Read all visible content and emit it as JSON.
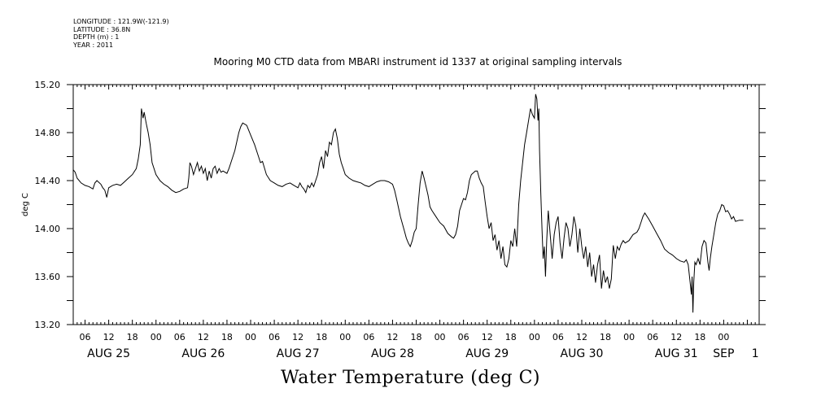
{
  "meta": {
    "longitude": "LONGITUDE : 121.9W(-121.9)",
    "latitude": "LATITUDE : 36.8N",
    "depth": "DEPTH (m) : 1",
    "year": "YEAR : 2011"
  },
  "chart_data": {
    "type": "line",
    "title": "Mooring M0 CTD data from MBARI instrument id 1337 at original sampling intervals",
    "bottom_title": "Water Temperature (deg C)",
    "ylabel": "deg C",
    "xlabel": "",
    "grid": false,
    "ylim": [
      13.2,
      15.2
    ],
    "y_ticks": [
      "13.20",
      "13.60",
      "14.00",
      "14.40",
      "14.80",
      "15.20"
    ],
    "x_unit": "hours since Aug 25 00:00, 2011",
    "xlim": [
      3,
      177
    ],
    "hour_ticks": [
      {
        "h": 6,
        "label": "06"
      },
      {
        "h": 12,
        "label": "12"
      },
      {
        "h": 18,
        "label": "18"
      },
      {
        "h": 24,
        "label": "00"
      },
      {
        "h": 30,
        "label": "06"
      },
      {
        "h": 36,
        "label": "12"
      },
      {
        "h": 42,
        "label": "18"
      },
      {
        "h": 48,
        "label": "00"
      },
      {
        "h": 54,
        "label": "06"
      },
      {
        "h": 60,
        "label": "12"
      },
      {
        "h": 66,
        "label": "18"
      },
      {
        "h": 72,
        "label": "00"
      },
      {
        "h": 78,
        "label": "06"
      },
      {
        "h": 84,
        "label": "12"
      },
      {
        "h": 90,
        "label": "18"
      },
      {
        "h": 96,
        "label": "00"
      },
      {
        "h": 102,
        "label": "06"
      },
      {
        "h": 108,
        "label": "12"
      },
      {
        "h": 114,
        "label": "18"
      },
      {
        "h": 120,
        "label": "00"
      },
      {
        "h": 126,
        "label": "06"
      },
      {
        "h": 132,
        "label": "12"
      },
      {
        "h": 138,
        "label": "18"
      },
      {
        "h": 144,
        "label": "00"
      },
      {
        "h": 150,
        "label": "06"
      },
      {
        "h": 156,
        "label": "12"
      },
      {
        "h": 162,
        "label": "18"
      },
      {
        "h": 168,
        "label": "00"
      }
    ],
    "day_labels": [
      {
        "h": 12,
        "label": "AUG 25"
      },
      {
        "h": 36,
        "label": "AUG 26"
      },
      {
        "h": 60,
        "label": "AUG 27"
      },
      {
        "h": 84,
        "label": "AUG 28"
      },
      {
        "h": 108,
        "label": "AUG 29"
      },
      {
        "h": 132,
        "label": "AUG 30"
      },
      {
        "h": 156,
        "label": "AUG 31"
      },
      {
        "h": 168,
        "label": "SEP"
      },
      {
        "h": 176,
        "label": "1"
      }
    ],
    "series": [
      {
        "points": [
          [
            3.0,
            14.49
          ],
          [
            3.5,
            14.47
          ],
          [
            4.0,
            14.42
          ],
          [
            5.0,
            14.38
          ],
          [
            6.0,
            14.36
          ],
          [
            7.0,
            14.35
          ],
          [
            8.0,
            14.33
          ],
          [
            8.5,
            14.38
          ],
          [
            9.0,
            14.4
          ],
          [
            10.0,
            14.37
          ],
          [
            10.5,
            14.34
          ],
          [
            11.0,
            14.32
          ],
          [
            11.5,
            14.26
          ],
          [
            12.0,
            14.34
          ],
          [
            13.0,
            14.36
          ],
          [
            14.0,
            14.37
          ],
          [
            15.0,
            14.36
          ],
          [
            16.0,
            14.39
          ],
          [
            17.0,
            14.42
          ],
          [
            18.0,
            14.45
          ],
          [
            19.0,
            14.5
          ],
          [
            19.5,
            14.58
          ],
          [
            20.0,
            14.7
          ],
          [
            20.3,
            15.0
          ],
          [
            20.7,
            14.92
          ],
          [
            21.0,
            14.97
          ],
          [
            21.5,
            14.88
          ],
          [
            22.0,
            14.8
          ],
          [
            22.5,
            14.7
          ],
          [
            23.0,
            14.55
          ],
          [
            24.0,
            14.45
          ],
          [
            25.0,
            14.4
          ],
          [
            26.0,
            14.37
          ],
          [
            27.0,
            14.35
          ],
          [
            28.0,
            14.32
          ],
          [
            29.0,
            14.3
          ],
          [
            30.0,
            14.31
          ],
          [
            31.0,
            14.33
          ],
          [
            32.0,
            14.34
          ],
          [
            32.3,
            14.42
          ],
          [
            32.6,
            14.55
          ],
          [
            33.0,
            14.52
          ],
          [
            33.5,
            14.45
          ],
          [
            34.0,
            14.5
          ],
          [
            34.5,
            14.55
          ],
          [
            35.0,
            14.48
          ],
          [
            35.5,
            14.52
          ],
          [
            36.0,
            14.46
          ],
          [
            36.5,
            14.5
          ],
          [
            37.0,
            14.4
          ],
          [
            37.5,
            14.48
          ],
          [
            38.0,
            14.42
          ],
          [
            38.5,
            14.5
          ],
          [
            39.0,
            14.52
          ],
          [
            39.5,
            14.46
          ],
          [
            40.0,
            14.5
          ],
          [
            40.5,
            14.47
          ],
          [
            41.0,
            14.48
          ],
          [
            42.0,
            14.46
          ],
          [
            42.5,
            14.5
          ],
          [
            43.0,
            14.55
          ],
          [
            44.0,
            14.65
          ],
          [
            45.0,
            14.8
          ],
          [
            45.5,
            14.85
          ],
          [
            46.0,
            14.88
          ],
          [
            47.0,
            14.86
          ],
          [
            48.0,
            14.78
          ],
          [
            49.0,
            14.7
          ],
          [
            50.0,
            14.6
          ],
          [
            50.5,
            14.55
          ],
          [
            51.0,
            14.56
          ],
          [
            52.0,
            14.45
          ],
          [
            53.0,
            14.4
          ],
          [
            54.0,
            14.38
          ],
          [
            55.0,
            14.36
          ],
          [
            56.0,
            14.35
          ],
          [
            57.0,
            14.37
          ],
          [
            58.0,
            14.38
          ],
          [
            59.0,
            14.36
          ],
          [
            60.0,
            14.34
          ],
          [
            60.5,
            14.38
          ],
          [
            61.0,
            14.35
          ],
          [
            61.5,
            14.33
          ],
          [
            62.0,
            14.3
          ],
          [
            62.5,
            14.36
          ],
          [
            63.0,
            14.34
          ],
          [
            63.5,
            14.38
          ],
          [
            64.0,
            14.35
          ],
          [
            65.0,
            14.45
          ],
          [
            65.5,
            14.55
          ],
          [
            66.0,
            14.6
          ],
          [
            66.5,
            14.5
          ],
          [
            67.0,
            14.65
          ],
          [
            67.5,
            14.6
          ],
          [
            68.0,
            14.72
          ],
          [
            68.5,
            14.7
          ],
          [
            69.0,
            14.8
          ],
          [
            69.5,
            14.83
          ],
          [
            70.0,
            14.75
          ],
          [
            70.5,
            14.62
          ],
          [
            71.0,
            14.55
          ],
          [
            71.5,
            14.5
          ],
          [
            72.0,
            14.45
          ],
          [
            73.0,
            14.42
          ],
          [
            74.0,
            14.4
          ],
          [
            75.0,
            14.39
          ],
          [
            76.0,
            14.38
          ],
          [
            77.0,
            14.36
          ],
          [
            78.0,
            14.35
          ],
          [
            79.0,
            14.37
          ],
          [
            80.0,
            14.39
          ],
          [
            81.0,
            14.4
          ],
          [
            82.0,
            14.4
          ],
          [
            83.0,
            14.39
          ],
          [
            84.0,
            14.37
          ],
          [
            84.5,
            14.32
          ],
          [
            85.0,
            14.25
          ],
          [
            86.0,
            14.1
          ],
          [
            87.0,
            13.98
          ],
          [
            87.5,
            13.92
          ],
          [
            88.0,
            13.88
          ],
          [
            88.5,
            13.85
          ],
          [
            89.0,
            13.9
          ],
          [
            89.5,
            13.97
          ],
          [
            90.0,
            14.0
          ],
          [
            90.5,
            14.2
          ],
          [
            91.0,
            14.38
          ],
          [
            91.5,
            14.48
          ],
          [
            92.0,
            14.42
          ],
          [
            92.5,
            14.35
          ],
          [
            93.0,
            14.28
          ],
          [
            93.5,
            14.18
          ],
          [
            94.0,
            14.15
          ],
          [
            95.0,
            14.1
          ],
          [
            96.0,
            14.05
          ],
          [
            97.0,
            14.02
          ],
          [
            98.0,
            13.96
          ],
          [
            99.0,
            13.93
          ],
          [
            99.5,
            13.92
          ],
          [
            100.0,
            13.95
          ],
          [
            100.5,
            14.02
          ],
          [
            101.0,
            14.15
          ],
          [
            101.5,
            14.2
          ],
          [
            102.0,
            14.25
          ],
          [
            102.5,
            14.24
          ],
          [
            103.0,
            14.3
          ],
          [
            103.5,
            14.4
          ],
          [
            104.0,
            14.45
          ],
          [
            105.0,
            14.48
          ],
          [
            105.5,
            14.48
          ],
          [
            106.0,
            14.42
          ],
          [
            106.5,
            14.38
          ],
          [
            107.0,
            14.35
          ],
          [
            107.5,
            14.22
          ],
          [
            108.0,
            14.1
          ],
          [
            108.5,
            14.0
          ],
          [
            109.0,
            14.05
          ],
          [
            109.5,
            13.9
          ],
          [
            110.0,
            13.95
          ],
          [
            110.5,
            13.82
          ],
          [
            111.0,
            13.9
          ],
          [
            111.5,
            13.75
          ],
          [
            112.0,
            13.85
          ],
          [
            112.5,
            13.7
          ],
          [
            113.0,
            13.68
          ],
          [
            113.5,
            13.75
          ],
          [
            114.0,
            13.9
          ],
          [
            114.5,
            13.85
          ],
          [
            115.0,
            14.0
          ],
          [
            115.5,
            13.85
          ],
          [
            116.0,
            14.2
          ],
          [
            116.5,
            14.4
          ],
          [
            117.0,
            14.55
          ],
          [
            117.5,
            14.7
          ],
          [
            118.0,
            14.8
          ],
          [
            118.5,
            14.9
          ],
          [
            119.0,
            15.0
          ],
          [
            119.5,
            14.95
          ],
          [
            120.0,
            14.92
          ],
          [
            120.3,
            15.12
          ],
          [
            120.6,
            15.08
          ],
          [
            120.9,
            14.9
          ],
          [
            121.1,
            15.0
          ],
          [
            121.3,
            14.65
          ],
          [
            121.6,
            14.3
          ],
          [
            121.9,
            14.0
          ],
          [
            122.2,
            13.75
          ],
          [
            122.5,
            13.85
          ],
          [
            122.8,
            13.6
          ],
          [
            123.1,
            13.9
          ],
          [
            123.5,
            14.15
          ],
          [
            124.0,
            13.95
          ],
          [
            124.5,
            13.75
          ],
          [
            125.0,
            13.95
          ],
          [
            125.5,
            14.05
          ],
          [
            126.0,
            14.1
          ],
          [
            126.5,
            13.88
          ],
          [
            127.0,
            13.75
          ],
          [
            127.5,
            13.92
          ],
          [
            128.0,
            14.05
          ],
          [
            128.5,
            14.0
          ],
          [
            129.0,
            13.85
          ],
          [
            129.5,
            13.95
          ],
          [
            130.0,
            14.1
          ],
          [
            130.5,
            14.02
          ],
          [
            131.0,
            13.8
          ],
          [
            131.5,
            14.0
          ],
          [
            132.0,
            13.85
          ],
          [
            132.5,
            13.75
          ],
          [
            133.0,
            13.85
          ],
          [
            133.5,
            13.68
          ],
          [
            134.0,
            13.8
          ],
          [
            134.5,
            13.6
          ],
          [
            135.0,
            13.7
          ],
          [
            135.5,
            13.55
          ],
          [
            136.0,
            13.7
          ],
          [
            136.5,
            13.78
          ],
          [
            137.0,
            13.5
          ],
          [
            137.5,
            13.65
          ],
          [
            138.0,
            13.55
          ],
          [
            138.5,
            13.6
          ],
          [
            139.0,
            13.5
          ],
          [
            139.5,
            13.58
          ],
          [
            140.0,
            13.86
          ],
          [
            140.5,
            13.75
          ],
          [
            141.0,
            13.85
          ],
          [
            141.5,
            13.82
          ],
          [
            142.0,
            13.87
          ],
          [
            142.5,
            13.9
          ],
          [
            143.0,
            13.88
          ],
          [
            144.0,
            13.9
          ],
          [
            145.0,
            13.95
          ],
          [
            146.0,
            13.97
          ],
          [
            146.5,
            14.0
          ],
          [
            147.0,
            14.05
          ],
          [
            147.5,
            14.1
          ],
          [
            148.0,
            14.13
          ],
          [
            149.0,
            14.08
          ],
          [
            150.0,
            14.02
          ],
          [
            151.0,
            13.96
          ],
          [
            152.0,
            13.9
          ],
          [
            153.0,
            13.83
          ],
          [
            154.0,
            13.8
          ],
          [
            155.0,
            13.78
          ],
          [
            156.0,
            13.75
          ],
          [
            157.0,
            13.73
          ],
          [
            158.0,
            13.72
          ],
          [
            158.5,
            13.74
          ],
          [
            159.0,
            13.7
          ],
          [
            159.5,
            13.55
          ],
          [
            159.8,
            13.45
          ],
          [
            160.0,
            13.6
          ],
          [
            160.2,
            13.3
          ],
          [
            160.4,
            13.55
          ],
          [
            160.7,
            13.72
          ],
          [
            161.0,
            13.7
          ],
          [
            161.5,
            13.75
          ],
          [
            162.0,
            13.7
          ],
          [
            162.5,
            13.85
          ],
          [
            163.0,
            13.9
          ],
          [
            163.5,
            13.88
          ],
          [
            164.0,
            13.72
          ],
          [
            164.3,
            13.65
          ],
          [
            164.6,
            13.75
          ],
          [
            165.0,
            13.85
          ],
          [
            165.5,
            13.95
          ],
          [
            166.0,
            14.05
          ],
          [
            166.5,
            14.12
          ],
          [
            167.0,
            14.15
          ],
          [
            167.5,
            14.2
          ],
          [
            168.0,
            14.19
          ],
          [
            168.5,
            14.14
          ],
          [
            169.0,
            14.15
          ],
          [
            169.5,
            14.12
          ],
          [
            170.0,
            14.08
          ],
          [
            170.5,
            14.1
          ],
          [
            171.0,
            14.06
          ],
          [
            172.0,
            14.07
          ],
          [
            173.0,
            14.07
          ]
        ]
      }
    ]
  }
}
